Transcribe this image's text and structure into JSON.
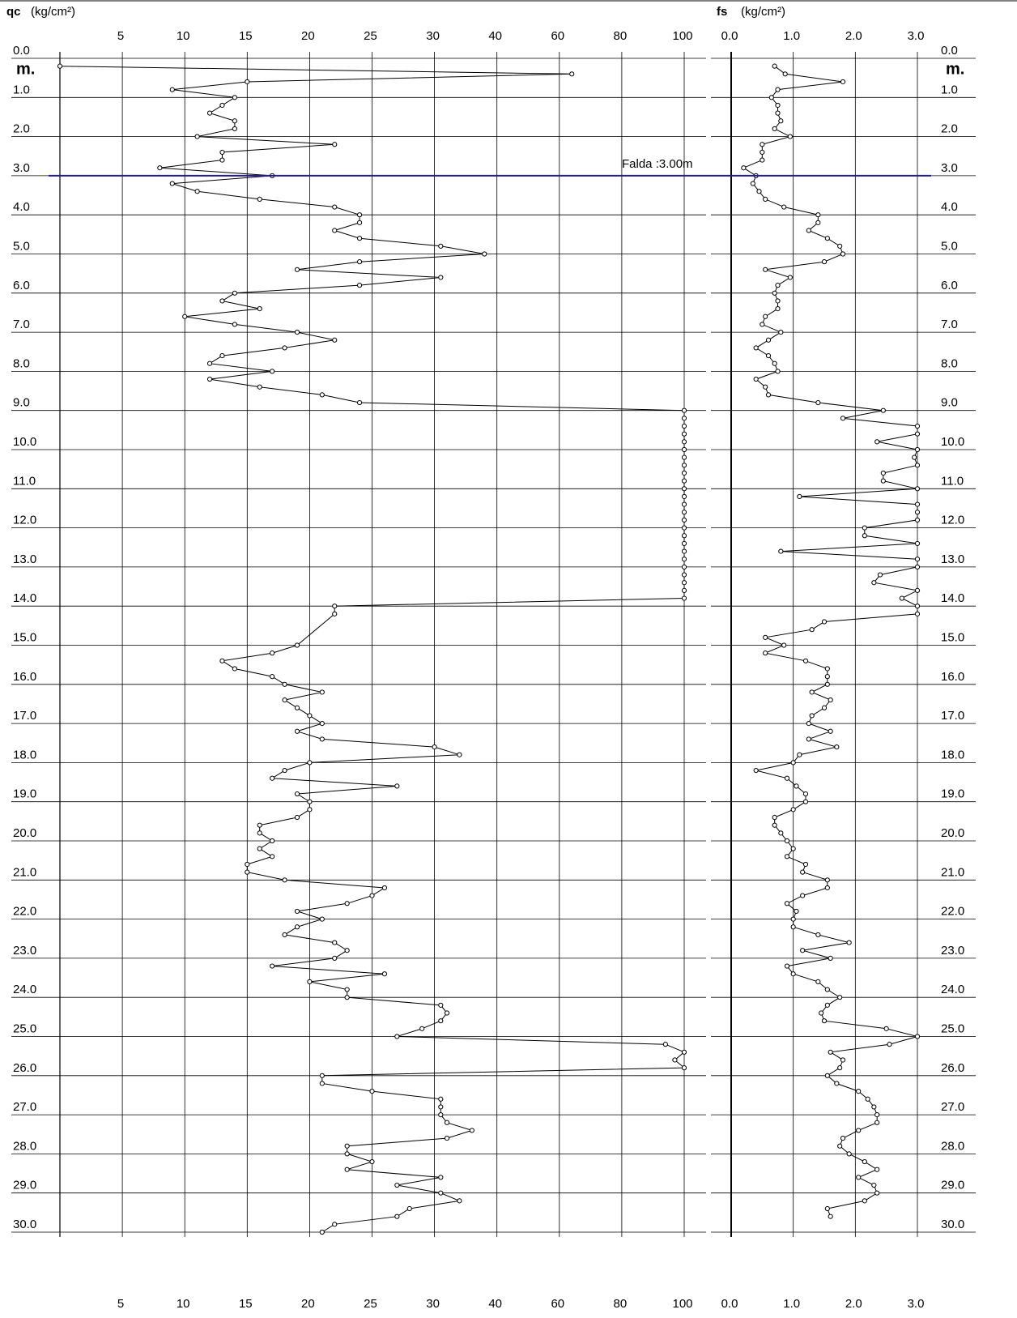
{
  "depth_axis": {
    "label": "m.",
    "ylim": [
      0,
      30
    ],
    "yticks": [
      {
        "value": 0,
        "label": "0.0"
      },
      {
        "value": 1,
        "label": "1.0"
      },
      {
        "value": 2,
        "label": "2.0"
      },
      {
        "value": 3,
        "label": "3.0"
      },
      {
        "value": 4,
        "label": "4.0"
      },
      {
        "value": 5,
        "label": "5.0"
      },
      {
        "value": 6,
        "label": "6.0"
      },
      {
        "value": 7,
        "label": "7.0"
      },
      {
        "value": 8,
        "label": "8.0"
      },
      {
        "value": 9,
        "label": "9.0"
      },
      {
        "value": 10,
        "label": "10.0"
      },
      {
        "value": 11,
        "label": "11.0"
      },
      {
        "value": 12,
        "label": "12.0"
      },
      {
        "value": 13,
        "label": "13.0"
      },
      {
        "value": 14,
        "label": "14.0"
      },
      {
        "value": 15,
        "label": "15.0"
      },
      {
        "value": 16,
        "label": "16.0"
      },
      {
        "value": 17,
        "label": "17.0"
      },
      {
        "value": 18,
        "label": "18.0"
      },
      {
        "value": 19,
        "label": "19.0"
      },
      {
        "value": 20,
        "label": "20.0"
      },
      {
        "value": 21,
        "label": "21.0"
      },
      {
        "value": 22,
        "label": "22.0"
      },
      {
        "value": 23,
        "label": "23.0"
      },
      {
        "value": 24,
        "label": "24.0"
      },
      {
        "value": 25,
        "label": "25.0"
      },
      {
        "value": 26,
        "label": "26.0"
      },
      {
        "value": 27,
        "label": "27.0"
      },
      {
        "value": 28,
        "label": "28.0"
      },
      {
        "value": 29,
        "label": "29.0"
      },
      {
        "value": 30,
        "label": "30.0"
      }
    ]
  },
  "water_table": {
    "label": "Falda :3.00m",
    "depth": 3,
    "color": "#1c1c9c"
  },
  "chart_data": [
    {
      "type": "line",
      "name": "qc",
      "unit": "(kg/cm²)",
      "color": "#000000",
      "xscale": "piecewise",
      "xlim": [
        0,
        100
      ],
      "xticks": [
        5,
        10,
        15,
        20,
        25,
        30,
        40,
        60,
        80,
        100
      ],
      "depth": [
        0.2,
        0.4,
        0.6,
        0.8,
        1.0,
        1.2,
        1.4,
        1.6,
        1.8,
        2.0,
        2.2,
        2.4,
        2.6,
        2.8,
        3.0,
        3.2,
        3.4,
        3.6,
        3.8,
        4.0,
        4.2,
        4.4,
        4.6,
        4.8,
        5.0,
        5.2,
        5.4,
        5.6,
        5.8,
        6.0,
        6.2,
        6.4,
        6.6,
        6.8,
        7.0,
        7.2,
        7.4,
        7.6,
        7.8,
        8.0,
        8.2,
        8.4,
        8.6,
        8.8,
        9.0,
        9.2,
        9.4,
        9.6,
        9.8,
        10.0,
        10.2,
        10.4,
        10.6,
        10.8,
        11.0,
        11.2,
        11.4,
        11.6,
        11.8,
        12.0,
        12.2,
        12.4,
        12.6,
        12.8,
        13.0,
        13.2,
        13.4,
        13.6,
        13.8,
        14.0,
        14.2,
        15.0,
        15.2,
        15.4,
        15.6,
        15.8,
        16.0,
        16.2,
        16.4,
        16.6,
        16.8,
        17.0,
        17.2,
        17.4,
        17.6,
        17.8,
        18.0,
        18.2,
        18.4,
        18.6,
        18.8,
        19.0,
        19.2,
        19.4,
        19.6,
        19.8,
        20.0,
        20.2,
        20.4,
        20.6,
        20.8,
        21.0,
        21.2,
        21.4,
        21.6,
        21.8,
        22.0,
        22.2,
        22.4,
        22.6,
        22.8,
        23.0,
        23.2,
        23.4,
        23.6,
        23.8,
        24.0,
        24.2,
        24.4,
        24.6,
        24.8,
        25.0,
        25.2,
        25.4,
        25.6,
        25.8,
        26.0,
        26.2,
        26.4,
        26.6,
        26.8,
        27.0,
        27.2,
        27.4,
        27.6,
        27.8,
        28.0,
        28.2,
        28.4,
        28.6,
        28.8,
        29.0,
        29.2,
        29.4,
        29.6,
        29.8,
        30.0
      ],
      "values": [
        0,
        64,
        15,
        9,
        14,
        13,
        12,
        14,
        14,
        11,
        22,
        13,
        13,
        8,
        17,
        9,
        11,
        16,
        22,
        24,
        24,
        22,
        24,
        31,
        38,
        24,
        19,
        31,
        24,
        14,
        13,
        16,
        10,
        14,
        19,
        22,
        18,
        13,
        12,
        17,
        12,
        16,
        21,
        24,
        100,
        100,
        100,
        100,
        100,
        100,
        100,
        100,
        100,
        100,
        100,
        100,
        100,
        100,
        100,
        100,
        100,
        100,
        100,
        100,
        100,
        100,
        100,
        100,
        100,
        22,
        22,
        19,
        17,
        13,
        14,
        17,
        18,
        21,
        18,
        19,
        20,
        21,
        19,
        21,
        30,
        34,
        20,
        18,
        17,
        27,
        19,
        20,
        20,
        19,
        16,
        16,
        17,
        16,
        17,
        15,
        15,
        18,
        26,
        25,
        23,
        19,
        21,
        19,
        18,
        22,
        23,
        22,
        17,
        26,
        20,
        23,
        23,
        31,
        32,
        31,
        29,
        27,
        94,
        100,
        97,
        100,
        21,
        21,
        25,
        31,
        31,
        31,
        32,
        36,
        32,
        23,
        23,
        25,
        23,
        31,
        27,
        31,
        34,
        28,
        27,
        22,
        21
      ]
    },
    {
      "type": "line",
      "name": "fs",
      "unit": "(kg/cm²)",
      "color": "#000000",
      "xlim": [
        0,
        3
      ],
      "xticks": [
        {
          "value": 0,
          "label": "0.0"
        },
        {
          "value": 1,
          "label": "1.0"
        },
        {
          "value": 2,
          "label": "2.0"
        },
        {
          "value": 3,
          "label": "3.0"
        }
      ],
      "depth": [
        0.2,
        0.4,
        0.6,
        0.8,
        1.0,
        1.2,
        1.4,
        1.6,
        1.8,
        2.0,
        2.2,
        2.4,
        2.6,
        2.8,
        3.0,
        3.2,
        3.4,
        3.6,
        3.8,
        4.0,
        4.2,
        4.4,
        4.6,
        4.8,
        5.0,
        5.2,
        5.4,
        5.6,
        5.8,
        6.0,
        6.2,
        6.4,
        6.6,
        6.8,
        7.0,
        7.2,
        7.4,
        7.6,
        7.8,
        8.0,
        8.2,
        8.4,
        8.6,
        8.8,
        9.0,
        9.2,
        9.4,
        9.6,
        9.8,
        10.0,
        10.2,
        10.4,
        10.6,
        10.8,
        11.0,
        11.2,
        11.4,
        11.6,
        11.8,
        12.0,
        12.2,
        12.4,
        12.6,
        12.8,
        13.0,
        13.2,
        13.4,
        13.6,
        13.8,
        14.0,
        14.2,
        14.4,
        14.6,
        14.8,
        15.0,
        15.2,
        15.4,
        15.6,
        15.8,
        16.0,
        16.2,
        16.4,
        16.6,
        16.8,
        17.0,
        17.2,
        17.4,
        17.6,
        17.8,
        18.0,
        18.2,
        18.4,
        18.6,
        18.8,
        19.0,
        19.2,
        19.4,
        19.6,
        19.8,
        20.0,
        20.2,
        20.4,
        20.6,
        20.8,
        21.0,
        21.2,
        21.4,
        21.6,
        21.8,
        22.0,
        22.2,
        22.4,
        22.6,
        22.8,
        23.0,
        23.2,
        23.4,
        23.6,
        23.8,
        24.0,
        24.2,
        24.4,
        24.6,
        24.8,
        25.0,
        25.2,
        25.4,
        25.6,
        25.8,
        26.0,
        26.2,
        26.4,
        26.6,
        26.8,
        27.0,
        27.2,
        27.4,
        27.6,
        27.8,
        28.0,
        28.2,
        28.4,
        28.6,
        28.8,
        29.0,
        29.2,
        29.4,
        29.6
      ],
      "values": [
        0.7,
        0.87,
        1.8,
        0.75,
        0.65,
        0.75,
        0.75,
        0.8,
        0.7,
        0.95,
        0.5,
        0.5,
        0.5,
        0.2,
        0.4,
        0.35,
        0.45,
        0.55,
        0.85,
        1.4,
        1.4,
        1.25,
        1.55,
        1.75,
        1.8,
        1.5,
        0.55,
        0.95,
        0.75,
        0.7,
        0.75,
        0.75,
        0.55,
        0.5,
        0.8,
        0.6,
        0.4,
        0.6,
        0.7,
        0.75,
        0.4,
        0.55,
        0.6,
        1.4,
        2.45,
        1.8,
        3,
        3,
        2.35,
        3,
        2.95,
        3,
        2.45,
        2.45,
        3,
        1.1,
        3,
        3,
        3,
        2.15,
        2.15,
        3,
        0.8,
        3,
        3,
        2.4,
        2.3,
        3,
        2.75,
        3,
        3,
        1.5,
        1.3,
        0.55,
        0.85,
        0.55,
        1.2,
        1.55,
        1.55,
        1.55,
        1.3,
        1.6,
        1.5,
        1.3,
        1.25,
        1.6,
        1.25,
        1.7,
        1.1,
        1.0,
        0.4,
        0.9,
        1.05,
        1.2,
        1.2,
        1.0,
        0.7,
        0.7,
        0.8,
        0.9,
        1.0,
        0.9,
        1.2,
        1.15,
        1.55,
        1.55,
        1.15,
        0.9,
        1.05,
        1.0,
        1.0,
        1.4,
        1.9,
        1.15,
        1.6,
        0.9,
        1.0,
        1.4,
        1.55,
        1.75,
        1.55,
        1.45,
        1.5,
        2.5,
        3.0,
        2.55,
        1.6,
        1.8,
        1.75,
        1.55,
        1.7,
        2.05,
        2.2,
        2.3,
        2.35,
        2.35,
        2.05,
        1.8,
        1.75,
        1.9,
        2.15,
        2.35,
        2.05,
        2.3,
        2.35,
        2.15,
        1.55,
        1.6
      ]
    }
  ]
}
